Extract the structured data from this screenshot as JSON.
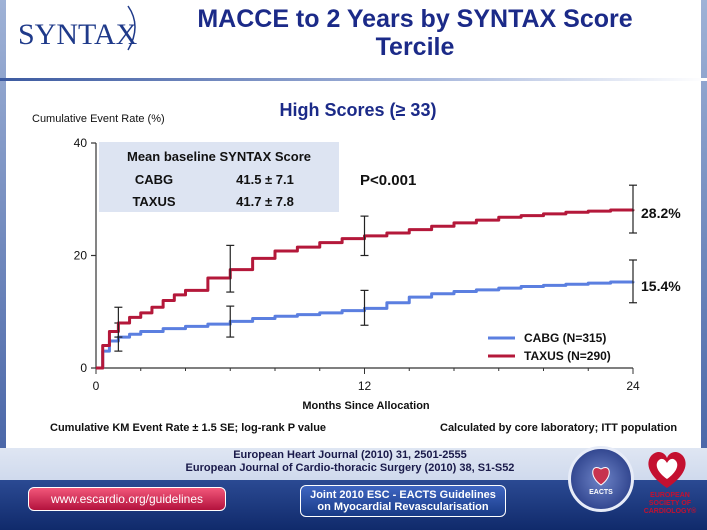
{
  "header": {
    "logo_text": "SYNTAX",
    "title_line1": "MACCE to 2 Years by SYNTAX Score",
    "title_line2": "Tercile"
  },
  "chart_data": {
    "type": "line",
    "title": "High Scores (≥ 33)",
    "ylabel": "Cumulative Event Rate (%)",
    "xlabel": "Months Since Allocation",
    "xlim": [
      0,
      24
    ],
    "ylim": [
      0,
      40
    ],
    "x_ticks": [
      "0",
      "12",
      "24"
    ],
    "y_ticks": [
      "0",
      "20",
      "40"
    ],
    "pvalue": "P<0.001",
    "legend_position": "bottom-right",
    "series": [
      {
        "name": "CABG (N=315)",
        "color": "#5b7fe0",
        "end_label": "15.4%",
        "x": [
          0,
          0.3,
          0.6,
          1,
          1.5,
          2,
          3,
          4,
          5,
          6,
          7,
          8,
          9,
          10,
          11,
          12,
          13,
          14,
          15,
          16,
          17,
          18,
          19,
          20,
          21,
          22,
          23,
          24
        ],
        "y": [
          0,
          3,
          4.8,
          5.5,
          6,
          6.5,
          7,
          7.4,
          7.8,
          8.3,
          8.8,
          9.2,
          9.5,
          9.8,
          10.2,
          10.6,
          11.6,
          12.6,
          13.2,
          13.6,
          13.9,
          14.2,
          14.5,
          14.7,
          14.9,
          15.1,
          15.3,
          15.4
        ],
        "error_bars": [
          {
            "x": 1,
            "y": 5.5,
            "low": 3.0,
            "high": 8.0
          },
          {
            "x": 6,
            "y": 8.3,
            "low": 5.5,
            "high": 11.0
          },
          {
            "x": 12,
            "y": 10.6,
            "low": 7.6,
            "high": 13.8
          },
          {
            "x": 24,
            "y": 15.4,
            "low": 11.6,
            "high": 19.2
          }
        ]
      },
      {
        "name": "TAXUS (N=290)",
        "color": "#b4183a",
        "end_label": "28.2%",
        "x": [
          0,
          0.3,
          0.6,
          1,
          1.5,
          2,
          2.5,
          3,
          3.5,
          4,
          5,
          6,
          7,
          8,
          9,
          10,
          11,
          12,
          13,
          14,
          15,
          16,
          17,
          18,
          19,
          20,
          21,
          22,
          23,
          24
        ],
        "y": [
          0,
          4,
          6.5,
          8,
          9,
          9.8,
          10.8,
          12,
          13,
          13.8,
          16,
          17.5,
          19.5,
          20.8,
          21.5,
          22.3,
          23,
          23.5,
          24,
          24.6,
          25.2,
          25.8,
          26.3,
          26.8,
          27.1,
          27.4,
          27.7,
          27.9,
          28.1,
          28.2
        ],
        "error_bars": [
          {
            "x": 1,
            "y": 8.0,
            "low": 5.5,
            "high": 10.8
          },
          {
            "x": 6,
            "y": 17.5,
            "low": 13.5,
            "high": 21.8
          },
          {
            "x": 12,
            "y": 23.5,
            "low": 20.0,
            "high": 27.0
          },
          {
            "x": 24,
            "y": 28.2,
            "low": 24.0,
            "high": 32.5
          }
        ]
      }
    ],
    "table": {
      "title": "Mean baseline SYNTAX Score",
      "rows": [
        {
          "label": "CABG",
          "value": "41.5 ± 7.1"
        },
        {
          "label": "TAXUS",
          "value": "41.7 ± 7.8"
        }
      ]
    }
  },
  "notes": {
    "left": "Cumulative KM Event Rate ± 1.5 SE; log-rank P value",
    "left_italic": "P",
    "right": "Calculated by core laboratory; ITT population"
  },
  "footer": {
    "ref1": "European Heart Journal (2010) 31, 2501-2555",
    "ref2": "European Journal of Cardio-thoracic Surgery (2010) 38, S1-S52",
    "url": "www.escardio.org/guidelines",
    "guideline_line1": "Joint 2010 ESC - EACTS Guidelines",
    "guideline_line2": "on Myocardial Revascularisation",
    "eacts_label": "EACTS",
    "esc_label_line1": "EUROPEAN",
    "esc_label_line2": "SOCIETY OF",
    "esc_label_line3": "CARDIOLOGY®"
  }
}
